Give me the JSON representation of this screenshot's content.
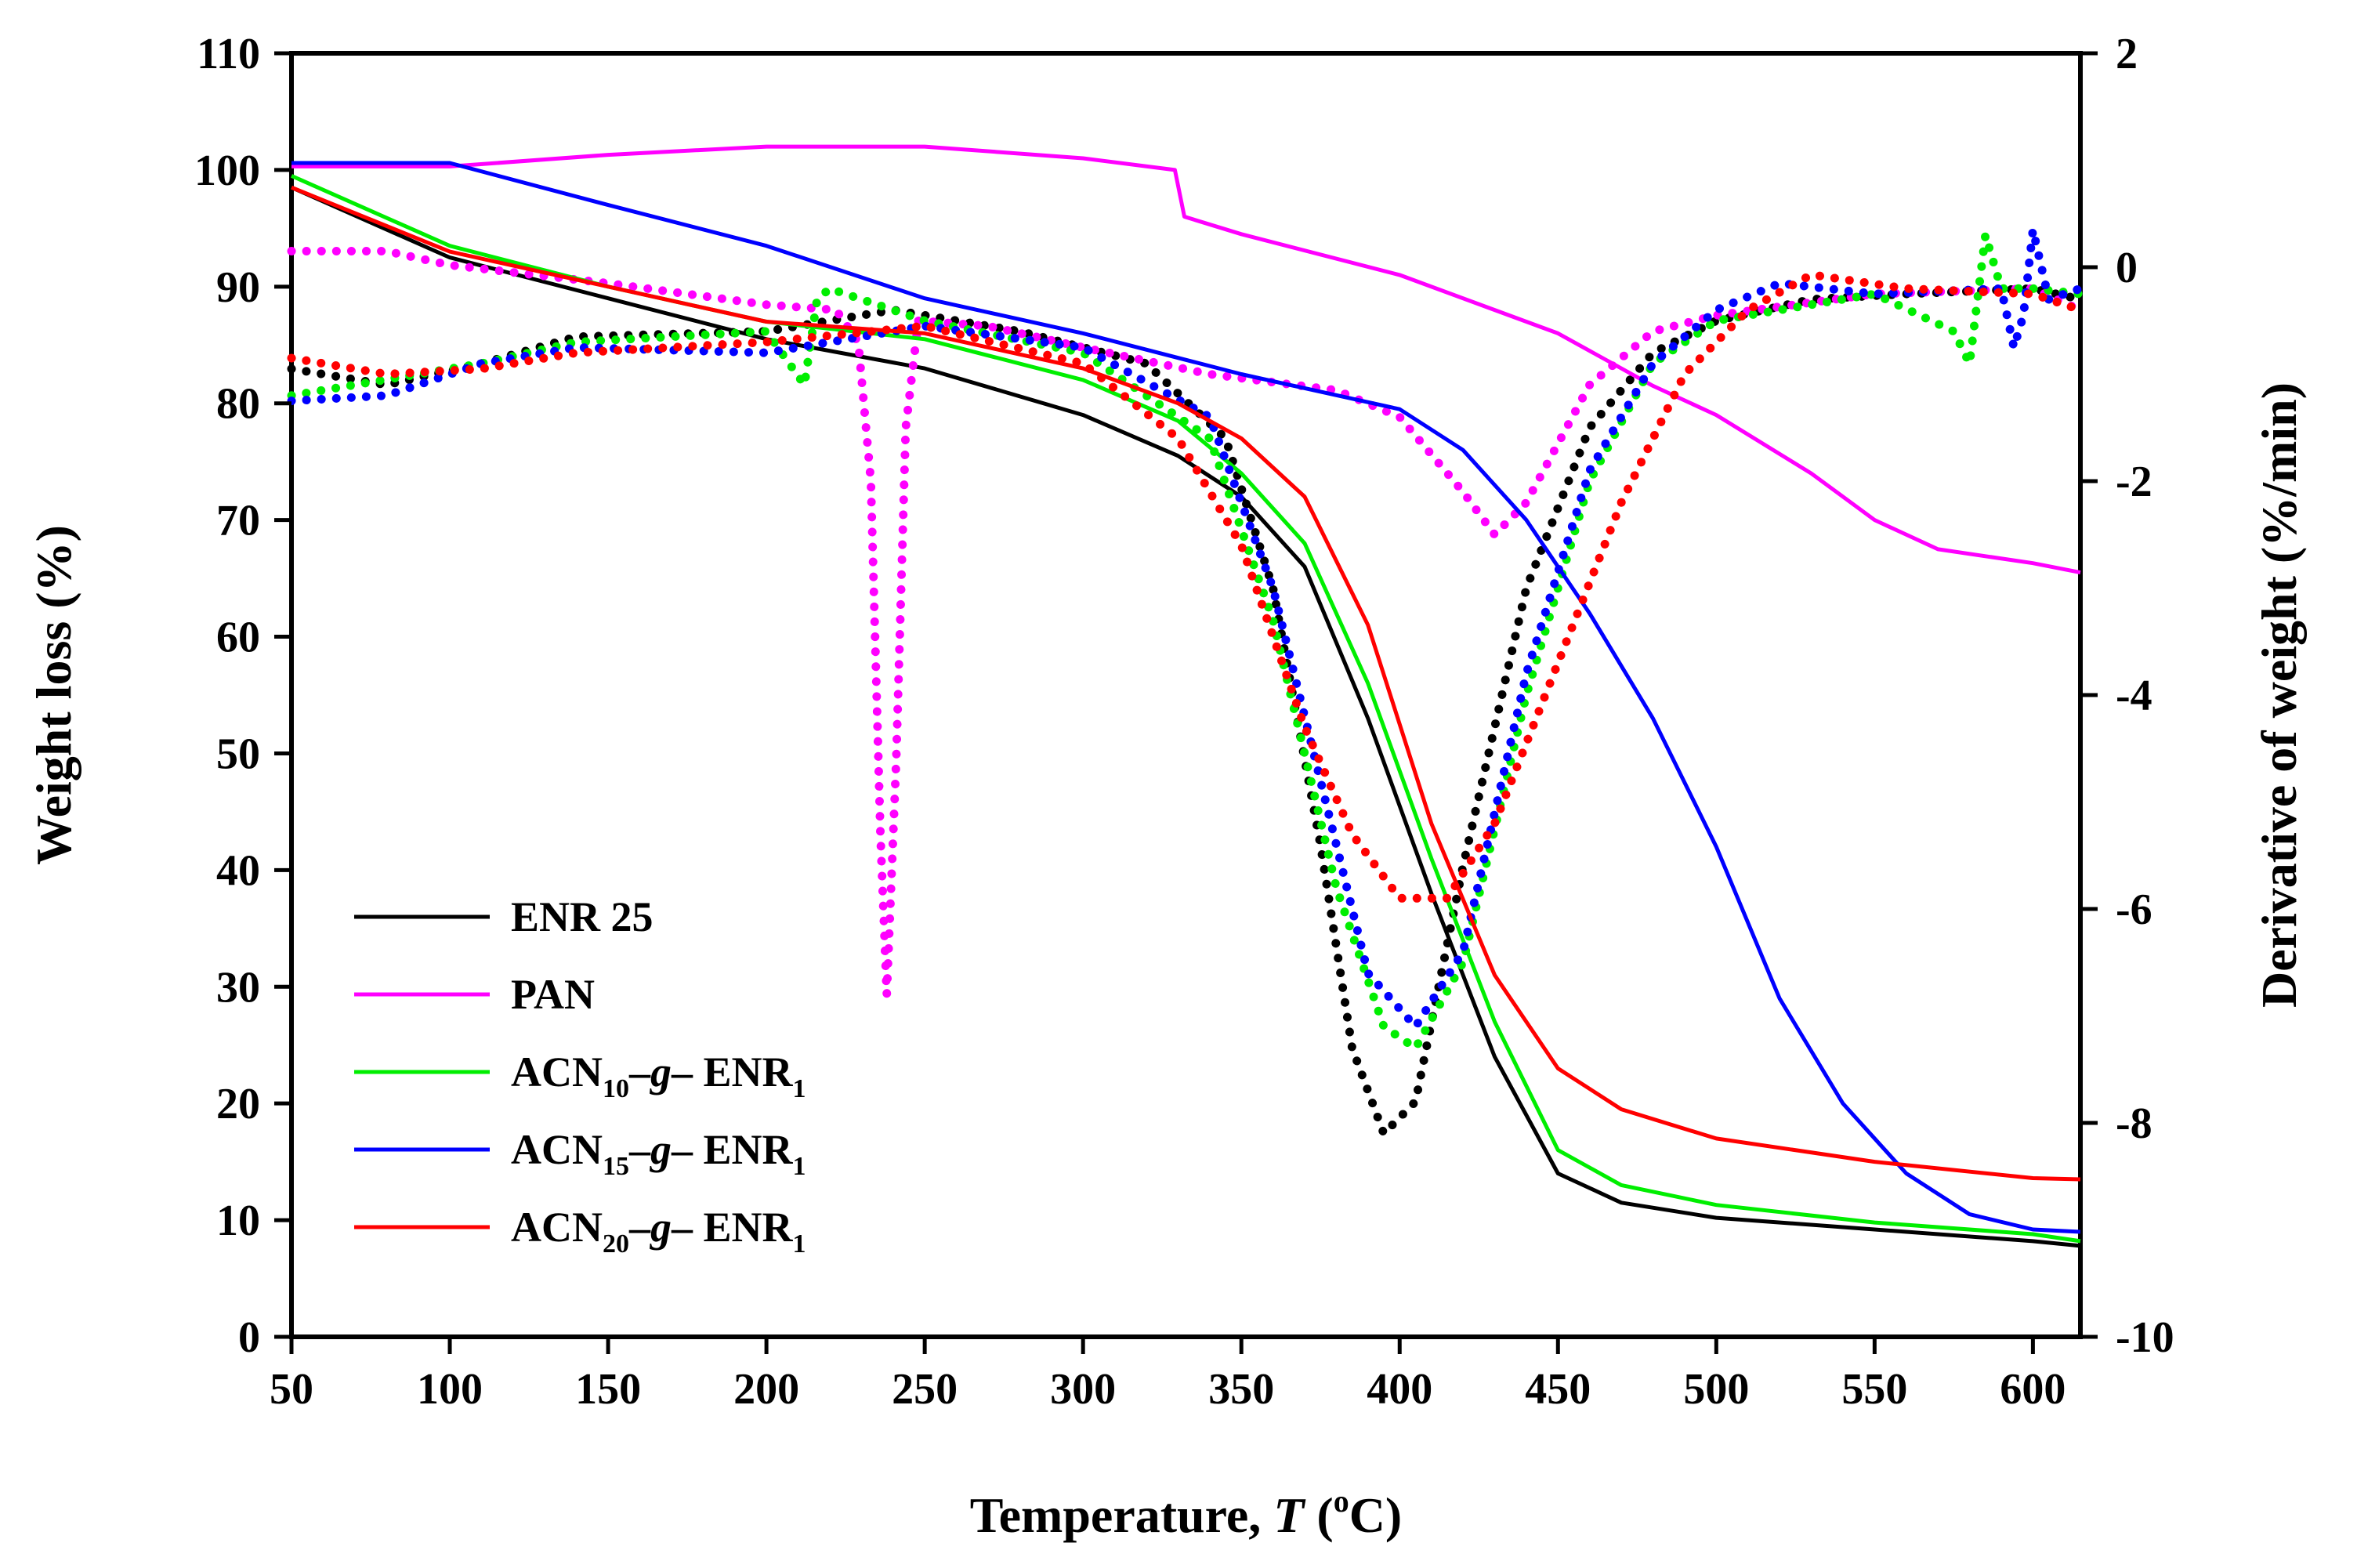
{
  "chart_data": {
    "type": "line",
    "title": "",
    "xlabel": {
      "prefix": "Temperature, ",
      "var": "T",
      "open": " (",
      "sup": "o",
      "unit": "C)"
    },
    "ylabel": "Weight loss (%)",
    "y2label": "Derivative of weight (%/min)",
    "xlim": [
      50,
      615
    ],
    "ylim": [
      0,
      110
    ],
    "y2lim": [
      -10,
      2
    ],
    "xticks": [
      "50",
      "100",
      "150",
      "200",
      "250",
      "300",
      "350",
      "400",
      "450",
      "500",
      "550",
      "600"
    ],
    "yticks": [
      "0",
      "10",
      "20",
      "30",
      "40",
      "50",
      "60",
      "70",
      "80",
      "90",
      "100",
      "110"
    ],
    "y2ticks": [
      "-10",
      "-8",
      "-6",
      "-4",
      "-2",
      "0",
      "2"
    ],
    "legend": [
      {
        "series": "ENR25",
        "parts": [
          {
            "t": "ENR 25"
          }
        ]
      },
      {
        "series": "PAN",
        "parts": [
          {
            "t": "PAN"
          }
        ]
      },
      {
        "series": "ACN10",
        "parts": [
          {
            "t": "ACN"
          },
          {
            "t": "10",
            "sub": true
          },
          {
            "t": "–"
          },
          {
            "t": "g",
            "italic": true
          },
          {
            "t": "– ENR"
          },
          {
            "t": "1",
            "sub": true
          }
        ]
      },
      {
        "series": "ACN15",
        "parts": [
          {
            "t": "ACN"
          },
          {
            "t": "15",
            "sub": true
          },
          {
            "t": "–"
          },
          {
            "t": "g",
            "italic": true
          },
          {
            "t": "– ENR"
          },
          {
            "t": "1",
            "sub": true
          }
        ]
      },
      {
        "series": "ACN20",
        "parts": [
          {
            "t": "ACN"
          },
          {
            "t": "20",
            "sub": true
          },
          {
            "t": "–"
          },
          {
            "t": "g",
            "italic": true
          },
          {
            "t": "– ENR"
          },
          {
            "t": "1",
            "sub": true
          }
        ]
      }
    ],
    "legend_position": "bottom-left",
    "series": [
      {
        "name": "ENR25",
        "color": "#000000",
        "tg": [
          [
            50,
            98.5
          ],
          [
            100,
            92.5
          ],
          [
            150,
            89
          ],
          [
            200,
            85.5
          ],
          [
            250,
            83
          ],
          [
            300,
            79
          ],
          [
            330,
            75.5
          ],
          [
            350,
            72
          ],
          [
            370,
            66
          ],
          [
            390,
            53
          ],
          [
            410,
            38
          ],
          [
            430,
            24
          ],
          [
            450,
            14
          ],
          [
            470,
            11.5
          ],
          [
            500,
            10.2
          ],
          [
            550,
            9.2
          ],
          [
            600,
            8.2
          ],
          [
            615,
            7.8
          ]
        ],
        "dtg": [
          [
            50,
            -0.95
          ],
          [
            80,
            -1.1
          ],
          [
            110,
            -0.9
          ],
          [
            140,
            -0.65
          ],
          [
            200,
            -0.6
          ],
          [
            240,
            -0.4
          ],
          [
            280,
            -0.6
          ],
          [
            320,
            -0.9
          ],
          [
            345,
            -1.6
          ],
          [
            360,
            -3
          ],
          [
            375,
            -5.4
          ],
          [
            385,
            -7.3
          ],
          [
            395,
            -8.1
          ],
          [
            405,
            -7.8
          ],
          [
            420,
            -5.6
          ],
          [
            440,
            -3
          ],
          [
            460,
            -1.5
          ],
          [
            480,
            -0.8
          ],
          [
            500,
            -0.5
          ],
          [
            530,
            -0.3
          ],
          [
            560,
            -0.25
          ],
          [
            600,
            -0.2
          ],
          [
            615,
            -0.3
          ]
        ]
      },
      {
        "name": "PAN",
        "color": "#ff00ff",
        "tg": [
          [
            50,
            100.3
          ],
          [
            100,
            100.3
          ],
          [
            150,
            101.3
          ],
          [
            200,
            102
          ],
          [
            250,
            102
          ],
          [
            300,
            101
          ],
          [
            329,
            100
          ],
          [
            332,
            96
          ],
          [
            350,
            94.5
          ],
          [
            400,
            91
          ],
          [
            450,
            86
          ],
          [
            480,
            81.5
          ],
          [
            500,
            79
          ],
          [
            530,
            74
          ],
          [
            550,
            70
          ],
          [
            570,
            67.5
          ],
          [
            600,
            66.3
          ],
          [
            615,
            65.5
          ]
        ],
        "dtg": [
          [
            50,
            0.15
          ],
          [
            80,
            0.15
          ],
          [
            100,
            0.02
          ],
          [
            150,
            -0.15
          ],
          [
            200,
            -0.35
          ],
          [
            222,
            -0.4
          ],
          [
            229,
            -0.7
          ],
          [
            233,
            -2
          ],
          [
            236,
            -5.3
          ],
          [
            238,
            -6.8
          ],
          [
            241,
            -4.6
          ],
          [
            244,
            -1.5
          ],
          [
            248,
            -0.5
          ],
          [
            270,
            -0.55
          ],
          [
            300,
            -0.75
          ],
          [
            340,
            -1
          ],
          [
            380,
            -1.15
          ],
          [
            400,
            -1.4
          ],
          [
            420,
            -2.1
          ],
          [
            430,
            -2.5
          ],
          [
            440,
            -2.2
          ],
          [
            460,
            -1.1
          ],
          [
            480,
            -0.6
          ],
          [
            500,
            -0.45
          ],
          [
            550,
            -0.25
          ],
          [
            600,
            -0.2
          ],
          [
            615,
            -0.4
          ]
        ]
      },
      {
        "name": "ACN10",
        "color": "#00ee00",
        "tg": [
          [
            50,
            99.5
          ],
          [
            100,
            93.5
          ],
          [
            150,
            90
          ],
          [
            200,
            87
          ],
          [
            250,
            85.5
          ],
          [
            300,
            82
          ],
          [
            330,
            78.5
          ],
          [
            350,
            74
          ],
          [
            370,
            68
          ],
          [
            390,
            56
          ],
          [
            410,
            41
          ],
          [
            430,
            27
          ],
          [
            450,
            16
          ],
          [
            470,
            13
          ],
          [
            500,
            11.3
          ],
          [
            550,
            9.8
          ],
          [
            600,
            8.8
          ],
          [
            615,
            8.2
          ]
        ],
        "dtg": [
          [
            50,
            -1.2
          ],
          [
            80,
            -1.05
          ],
          [
            110,
            -0.9
          ],
          [
            140,
            -0.7
          ],
          [
            200,
            -0.6
          ],
          [
            212,
            -1.1
          ],
          [
            216,
            -0.3
          ],
          [
            220,
            -0.2
          ],
          [
            250,
            -0.5
          ],
          [
            300,
            -0.8
          ],
          [
            340,
            -1.6
          ],
          [
            360,
            -3.3
          ],
          [
            380,
            -5.8
          ],
          [
            395,
            -7.1
          ],
          [
            405,
            -7.3
          ],
          [
            420,
            -6.5
          ],
          [
            440,
            -4
          ],
          [
            460,
            -2
          ],
          [
            480,
            -0.9
          ],
          [
            500,
            -0.5
          ],
          [
            550,
            -0.25
          ],
          [
            575,
            -0.6
          ],
          [
            580,
            -0.9
          ],
          [
            585,
            0.3
          ],
          [
            590,
            -0.2
          ],
          [
            600,
            -0.2
          ],
          [
            615,
            -0.25
          ]
        ]
      },
      {
        "name": "ACN15",
        "color": "#0000ff",
        "tg": [
          [
            50,
            100.6
          ],
          [
            100,
            100.6
          ],
          [
            150,
            97
          ],
          [
            200,
            93.5
          ],
          [
            250,
            89
          ],
          [
            300,
            86
          ],
          [
            350,
            82.5
          ],
          [
            400,
            79.5
          ],
          [
            420,
            76
          ],
          [
            440,
            70
          ],
          [
            460,
            62
          ],
          [
            480,
            53
          ],
          [
            500,
            42
          ],
          [
            520,
            29
          ],
          [
            540,
            20
          ],
          [
            560,
            14
          ],
          [
            580,
            10.5
          ],
          [
            600,
            9.2
          ],
          [
            615,
            9
          ]
        ],
        "dtg": [
          [
            50,
            -1.25
          ],
          [
            80,
            -1.2
          ],
          [
            110,
            -0.9
          ],
          [
            140,
            -0.75
          ],
          [
            200,
            -0.8
          ],
          [
            250,
            -0.55
          ],
          [
            300,
            -0.75
          ],
          [
            340,
            -1.4
          ],
          [
            360,
            -3
          ],
          [
            375,
            -4.8
          ],
          [
            390,
            -6.6
          ],
          [
            405,
            -7.1
          ],
          [
            420,
            -6.4
          ],
          [
            440,
            -3.8
          ],
          [
            460,
            -1.9
          ],
          [
            480,
            -0.9
          ],
          [
            500,
            -0.4
          ],
          [
            520,
            -0.15
          ],
          [
            550,
            -0.25
          ],
          [
            590,
            -0.2
          ],
          [
            594,
            -0.75
          ],
          [
            597,
            -0.45
          ],
          [
            600,
            0.35
          ],
          [
            605,
            -0.3
          ],
          [
            615,
            -0.2
          ]
        ]
      },
      {
        "name": "ACN20",
        "color": "#ff0000",
        "tg": [
          [
            50,
            98.5
          ],
          [
            100,
            93
          ],
          [
            150,
            90
          ],
          [
            200,
            87
          ],
          [
            250,
            86
          ],
          [
            300,
            83
          ],
          [
            330,
            80
          ],
          [
            350,
            77
          ],
          [
            370,
            72
          ],
          [
            390,
            61
          ],
          [
            410,
            44
          ],
          [
            430,
            31
          ],
          [
            450,
            23
          ],
          [
            470,
            19.5
          ],
          [
            500,
            17
          ],
          [
            550,
            15
          ],
          [
            600,
            13.6
          ],
          [
            615,
            13.5
          ]
        ],
        "dtg": [
          [
            50,
            -0.85
          ],
          [
            80,
            -1
          ],
          [
            110,
            -0.95
          ],
          [
            140,
            -0.8
          ],
          [
            200,
            -0.7
          ],
          [
            250,
            -0.55
          ],
          [
            300,
            -0.9
          ],
          [
            330,
            -1.6
          ],
          [
            350,
            -2.6
          ],
          [
            370,
            -4.3
          ],
          [
            385,
            -5.3
          ],
          [
            400,
            -5.9
          ],
          [
            415,
            -5.9
          ],
          [
            430,
            -5.2
          ],
          [
            450,
            -3.7
          ],
          [
            470,
            -2.2
          ],
          [
            490,
            -1
          ],
          [
            510,
            -0.4
          ],
          [
            530,
            -0.07
          ],
          [
            560,
            -0.2
          ],
          [
            600,
            -0.25
          ],
          [
            615,
            -0.4
          ]
        ]
      }
    ]
  }
}
